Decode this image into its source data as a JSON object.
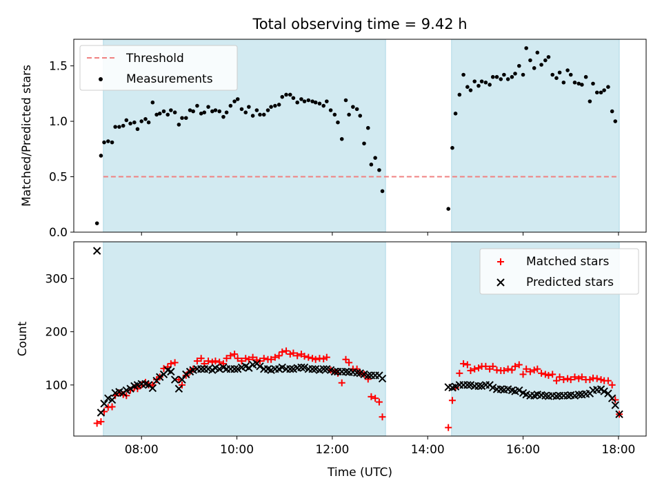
{
  "title": "Total observing time = 9.42 h",
  "xlabel": "Time (UTC)",
  "chart_data": [
    {
      "type": "scatter",
      "panel": "top",
      "ylabel": "Matched/Predicted stars",
      "x_range_hours": [
        6.58,
        18.58
      ],
      "ylim": [
        0,
        1.74
      ],
      "yticks": [
        0.0,
        0.5,
        1.0,
        1.5
      ],
      "ytick_labels": [
        "0.0",
        "0.5",
        "1.0",
        "1.5"
      ],
      "legend_position": "upper-left",
      "shaded_intervals": [
        {
          "start": "07:12",
          "end": "13:07"
        },
        {
          "start": "14:30",
          "end": "18:01"
        }
      ],
      "threshold": {
        "name": "Threshold",
        "value": 0.5,
        "color": "#f08080",
        "style": "dashed"
      },
      "series": [
        {
          "name": "Measurements",
          "color": "#000000",
          "marker": "dot",
          "x": [
            "07:04",
            "07:09",
            "07:13",
            "07:18",
            "07:23",
            "07:27",
            "07:32",
            "07:37",
            "07:41",
            "07:46",
            "07:51",
            "07:55",
            "08:00",
            "08:05",
            "08:09",
            "08:14",
            "08:19",
            "08:23",
            "08:28",
            "08:33",
            "08:37",
            "08:42",
            "08:47",
            "08:51",
            "08:56",
            "09:01",
            "09:05",
            "09:10",
            "09:15",
            "09:19",
            "09:24",
            "09:29",
            "09:33",
            "09:38",
            "09:43",
            "09:47",
            "09:52",
            "09:57",
            "10:01",
            "10:06",
            "10:11",
            "10:15",
            "10:20",
            "10:25",
            "10:29",
            "10:34",
            "10:39",
            "10:43",
            "10:48",
            "10:53",
            "10:57",
            "11:02",
            "11:07",
            "11:11",
            "11:16",
            "11:21",
            "11:25",
            "11:30",
            "11:35",
            "11:39",
            "11:44",
            "11:49",
            "11:53",
            "11:58",
            "12:03",
            "12:07",
            "12:12",
            "12:17",
            "12:21",
            "12:26",
            "12:31",
            "12:35",
            "12:40",
            "12:45",
            "12:49",
            "12:54",
            "12:59",
            "13:03",
            "13:08",
            "14:26",
            "14:31",
            "14:35",
            "14:40",
            "14:45",
            "14:50",
            "14:54",
            "14:59",
            "15:04",
            "15:08",
            "15:13",
            "15:18",
            "15:22",
            "15:27",
            "15:32",
            "15:36",
            "15:41",
            "15:46",
            "15:50",
            "15:55",
            "16:00",
            "16:04",
            "16:09",
            "16:14",
            "16:18",
            "16:23",
            "16:28",
            "16:32",
            "16:37",
            "16:42",
            "16:46",
            "16:51",
            "16:56",
            "17:00",
            "17:05",
            "17:10",
            "17:14",
            "17:19",
            "17:24",
            "17:28",
            "17:33",
            "17:38",
            "17:42",
            "17:47",
            "17:52",
            "17:56",
            "18:01"
          ],
          "y": [
            0.08,
            0.69,
            0.81,
            0.82,
            0.81,
            0.95,
            0.95,
            0.96,
            1.01,
            0.98,
            0.99,
            0.93,
            1.0,
            1.02,
            0.99,
            1.17,
            1.06,
            1.07,
            1.09,
            1.06,
            1.1,
            1.08,
            0.97,
            1.03,
            1.03,
            1.1,
            1.09,
            1.14,
            1.07,
            1.08,
            1.13,
            1.09,
            1.1,
            1.09,
            1.04,
            1.08,
            1.14,
            1.18,
            1.2,
            1.11,
            1.08,
            1.13,
            1.05,
            1.1,
            1.06,
            1.06,
            1.1,
            1.13,
            1.14,
            1.15,
            1.22,
            1.24,
            1.24,
            1.21,
            1.17,
            1.2,
            1.18,
            1.19,
            1.18,
            1.17,
            1.16,
            1.14,
            1.18,
            1.1,
            1.06,
            0.99,
            0.84,
            1.19,
            1.06,
            1.13,
            1.11,
            1.05,
            0.8,
            0.94,
            0.61,
            0.67,
            0.56,
            0.37,
            null,
            0.21,
            0.76,
            1.07,
            1.24,
            1.42,
            1.31,
            1.28,
            1.36,
            1.32,
            1.36,
            1.35,
            1.33,
            1.4,
            1.4,
            1.38,
            1.42,
            1.38,
            1.4,
            1.43,
            1.5,
            1.42,
            1.66,
            1.55,
            1.48,
            1.62,
            1.51,
            1.55,
            1.58,
            1.42,
            1.39,
            1.44,
            1.35,
            1.46,
            1.42,
            1.35,
            1.34,
            1.33,
            1.4,
            1.18,
            1.34,
            1.26,
            1.26,
            1.28,
            1.31,
            1.09,
            1.0,
            null
          ]
        }
      ]
    },
    {
      "type": "scatter",
      "panel": "bottom",
      "ylabel": "Count",
      "x_range_hours": [
        6.58,
        18.58
      ],
      "ylim": [
        4,
        369
      ],
      "yticks": [
        100,
        200,
        300
      ],
      "ytick_labels": [
        "100",
        "200",
        "300"
      ],
      "xticks": [
        8,
        10,
        12,
        14,
        16,
        18
      ],
      "xtick_labels": [
        "08:00",
        "10:00",
        "12:00",
        "14:00",
        "16:00",
        "18:00"
      ],
      "legend_position": "upper-right",
      "shaded_intervals": [
        {
          "start": "07:12",
          "end": "13:07"
        },
        {
          "start": "14:30",
          "end": "18:01"
        }
      ],
      "series": [
        {
          "name": "Matched stars",
          "color": "#ff0000",
          "marker": "plus",
          "x": [
            "07:04",
            "07:09",
            "07:13",
            "07:18",
            "07:23",
            "07:27",
            "07:32",
            "07:37",
            "07:41",
            "07:46",
            "07:51",
            "07:55",
            "08:00",
            "08:05",
            "08:09",
            "08:14",
            "08:19",
            "08:23",
            "08:28",
            "08:33",
            "08:37",
            "08:42",
            "08:47",
            "08:51",
            "08:56",
            "09:01",
            "09:05",
            "09:10",
            "09:15",
            "09:19",
            "09:24",
            "09:29",
            "09:33",
            "09:38",
            "09:43",
            "09:47",
            "09:52",
            "09:57",
            "10:01",
            "10:06",
            "10:11",
            "10:15",
            "10:20",
            "10:25",
            "10:29",
            "10:34",
            "10:39",
            "10:43",
            "10:48",
            "10:53",
            "10:57",
            "11:02",
            "11:07",
            "11:11",
            "11:16",
            "11:21",
            "11:25",
            "11:30",
            "11:35",
            "11:39",
            "11:44",
            "11:49",
            "11:53",
            "11:58",
            "12:03",
            "12:07",
            "12:12",
            "12:17",
            "12:21",
            "12:26",
            "12:31",
            "12:35",
            "12:40",
            "12:45",
            "12:49",
            "12:54",
            "12:59",
            "13:03",
            "13:08",
            "14:26",
            "14:31",
            "14:35",
            "14:40",
            "14:45",
            "14:50",
            "14:54",
            "14:59",
            "15:04",
            "15:08",
            "15:13",
            "15:18",
            "15:22",
            "15:27",
            "15:32",
            "15:36",
            "15:41",
            "15:46",
            "15:50",
            "15:55",
            "16:00",
            "16:04",
            "16:09",
            "16:14",
            "16:18",
            "16:23",
            "16:28",
            "16:32",
            "16:37",
            "16:42",
            "16:46",
            "16:51",
            "16:56",
            "17:00",
            "17:05",
            "17:10",
            "17:14",
            "17:19",
            "17:24",
            "17:28",
            "17:33",
            "17:38",
            "17:42",
            "17:47",
            "17:52",
            "17:56",
            "18:01"
          ],
          "y": [
            28,
            31,
            50,
            58,
            59,
            80,
            85,
            82,
            80,
            90,
            95,
            93,
            100,
            105,
            100,
            100,
            110,
            115,
            131,
            134,
            140,
            142,
            110,
            100,
            118,
            125,
            130,
            145,
            150,
            140,
            145,
            143,
            145,
            143,
            140,
            150,
            155,
            158,
            150,
            145,
            150,
            148,
            152,
            147,
            145,
            150,
            148,
            148,
            152,
            155,
            162,
            164,
            158,
            160,
            155,
            158,
            154,
            152,
            150,
            148,
            150,
            149,
            152,
            128,
            125,
            122,
            104,
            148,
            142,
            130,
            130,
            122,
            120,
            111,
            78,
            75,
            68,
            40,
            null,
            20,
            71,
            95,
            122,
            140,
            138,
            127,
            130,
            132,
            135,
            135,
            130,
            135,
            128,
            127,
            127,
            130,
            128,
            135,
            138,
            120,
            130,
            125,
            128,
            130,
            122,
            120,
            118,
            120,
            108,
            115,
            110,
            112,
            110,
            115,
            112,
            115,
            110,
            110,
            113,
            112,
            110,
            108,
            108,
            100,
            72,
            45
          ]
        },
        {
          "name": "Predicted stars",
          "color": "#000000",
          "marker": "x",
          "x": [
            "07:04",
            "07:09",
            "07:13",
            "07:18",
            "07:23",
            "07:27",
            "07:32",
            "07:37",
            "07:41",
            "07:46",
            "07:51",
            "07:55",
            "08:00",
            "08:05",
            "08:09",
            "08:14",
            "08:19",
            "08:23",
            "08:28",
            "08:33",
            "08:37",
            "08:42",
            "08:47",
            "08:51",
            "08:56",
            "09:01",
            "09:05",
            "09:10",
            "09:15",
            "09:19",
            "09:24",
            "09:29",
            "09:33",
            "09:38",
            "09:43",
            "09:47",
            "09:52",
            "09:57",
            "10:01",
            "10:06",
            "10:11",
            "10:15",
            "10:20",
            "10:25",
            "10:29",
            "10:34",
            "10:39",
            "10:43",
            "10:48",
            "10:53",
            "10:57",
            "11:02",
            "11:07",
            "11:11",
            "11:16",
            "11:21",
            "11:25",
            "11:30",
            "11:35",
            "11:39",
            "11:44",
            "11:49",
            "11:53",
            "11:58",
            "12:03",
            "12:07",
            "12:12",
            "12:17",
            "12:21",
            "12:26",
            "12:31",
            "12:35",
            "12:40",
            "12:45",
            "12:49",
            "12:54",
            "12:59",
            "13:03",
            "13:08",
            "14:26",
            "14:31",
            "14:35",
            "14:40",
            "14:45",
            "14:50",
            "14:54",
            "14:59",
            "15:04",
            "15:08",
            "15:13",
            "15:18",
            "15:22",
            "15:27",
            "15:32",
            "15:36",
            "15:41",
            "15:46",
            "15:50",
            "15:55",
            "16:00",
            "16:04",
            "16:09",
            "16:14",
            "16:18",
            "16:23",
            "16:28",
            "16:32",
            "16:37",
            "16:42",
            "16:46",
            "16:51",
            "16:56",
            "17:00",
            "17:05",
            "17:10",
            "17:14",
            "17:19",
            "17:24",
            "17:28",
            "17:33",
            "17:38",
            "17:42",
            "17:47",
            "17:52",
            "17:56",
            "18:01"
          ],
          "y": [
            352,
            48,
            65,
            75,
            72,
            85,
            87,
            85,
            90,
            93,
            98,
            100,
            102,
            102,
            100,
            94,
            108,
            115,
            120,
            128,
            125,
            110,
            93,
            110,
            120,
            125,
            128,
            130,
            130,
            130,
            130,
            128,
            132,
            130,
            133,
            130,
            130,
            130,
            130,
            133,
            135,
            132,
            138,
            140,
            135,
            130,
            130,
            128,
            130,
            130,
            133,
            130,
            130,
            130,
            132,
            133,
            133,
            130,
            130,
            130,
            128,
            130,
            130,
            128,
            125,
            125,
            125,
            125,
            124,
            124,
            123,
            122,
            120,
            118,
            118,
            118,
            118,
            112,
            null,
            96,
            95,
            97,
            100,
            100,
            100,
            100,
            98,
            98,
            98,
            100,
            100,
            95,
            92,
            92,
            91,
            92,
            90,
            88,
            90,
            85,
            82,
            80,
            80,
            82,
            81,
            80,
            79,
            80,
            79,
            80,
            80,
            80,
            81,
            80,
            82,
            82,
            83,
            84,
            90,
            91,
            92,
            88,
            84,
            75,
            62,
            45
          ]
        }
      ]
    }
  ]
}
